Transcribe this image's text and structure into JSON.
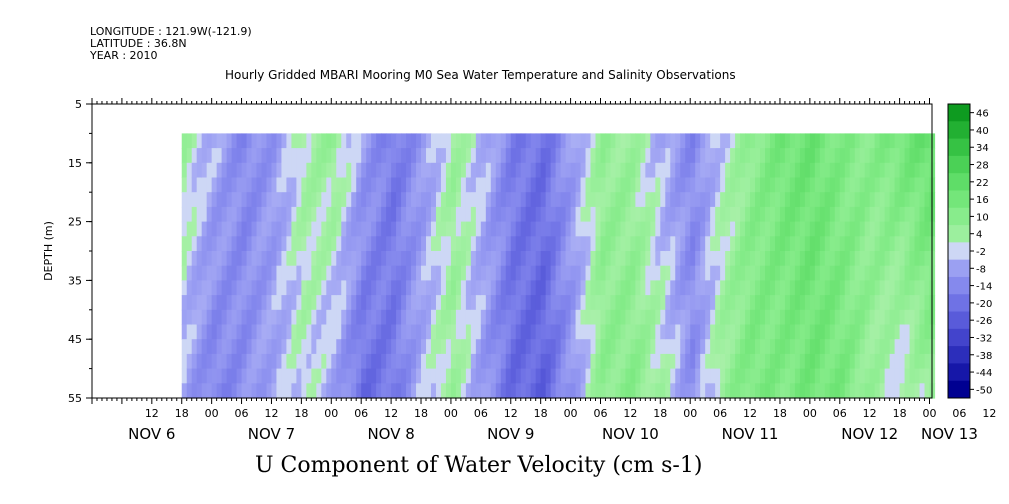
{
  "header": {
    "longitude": "LONGITUDE : 121.9W(-121.9)",
    "latitude": "LATITUDE : 36.8N",
    "year": "YEAR : 2010"
  },
  "chart_data": {
    "type": "heatmap",
    "title": "Hourly Gridded MBARI Mooring M0 Sea Water Temperature and Salinity Observations",
    "ylabel": "DEPTH (m)",
    "variable_label": "U Component of Water Velocity (cm s-1)",
    "y_reversed": true,
    "ylim": [
      5,
      55
    ],
    "yticks": [
      5,
      15,
      25,
      35,
      45,
      55
    ],
    "data_depth_range": [
      10,
      55
    ],
    "x_hour_labels": [
      "12",
      "18",
      "00",
      "06",
      "12",
      "18",
      "00",
      "06",
      "12",
      "18",
      "00",
      "06",
      "12",
      "18",
      "00",
      "06",
      "12",
      "18",
      "00",
      "06",
      "12",
      "18",
      "00",
      "06",
      "12",
      "18",
      "00",
      "06",
      "12",
      "18",
      "00",
      "06"
    ],
    "x_day_labels": [
      "NOV  6",
      "NOV  7",
      "NOV  8",
      "NOV  9",
      "NOV 10",
      "NOV 11",
      "NOV 12",
      "NOV 13"
    ],
    "x_day_label_positions_hours": [
      12,
      36,
      60,
      84,
      108,
      132,
      156,
      172
    ],
    "x_range_hours": [
      0,
      168
    ],
    "data_start_hour": 18,
    "colorbar": {
      "levels": [
        46,
        40,
        34,
        28,
        22,
        16,
        10,
        4,
        -2,
        -8,
        -14,
        -20,
        -26,
        -32,
        -38,
        -44,
        -50
      ],
      "range": [
        -50,
        50
      ]
    },
    "series": [
      {
        "name": "",
        "note": "U velocity (cm s-1) by time; columns = 6-hourly samples from NOV 6 18h, rows = depth (10, 15, ..., 55 m)",
        "depths": [
          10,
          15,
          20,
          25,
          30,
          35,
          40,
          45,
          50,
          55
        ],
        "times_hours": [
          18,
          24,
          30,
          36,
          42,
          48,
          54,
          60,
          66,
          72,
          78,
          84,
          90,
          96,
          102,
          108,
          114,
          120,
          126,
          132,
          138,
          144,
          150,
          156,
          162,
          168,
          174,
          180,
          186,
          192
        ],
        "values_surface": [
          4,
          -6,
          -14,
          -10,
          2,
          6,
          -8,
          -18,
          -10,
          4,
          -4,
          -16,
          -20,
          -8,
          6,
          4,
          -6,
          -14,
          -2,
          8,
          16,
          18,
          12,
          10,
          16,
          20,
          14,
          16,
          18,
          4
        ],
        "values_deep": [
          -8,
          -16,
          -12,
          -6,
          0,
          -8,
          -22,
          -18,
          -4,
          4,
          -10,
          -22,
          -24,
          -10,
          8,
          10,
          2,
          -12,
          6,
          14,
          12,
          16,
          14,
          4,
          -4,
          6,
          -8,
          10,
          4,
          -8
        ]
      }
    ]
  }
}
